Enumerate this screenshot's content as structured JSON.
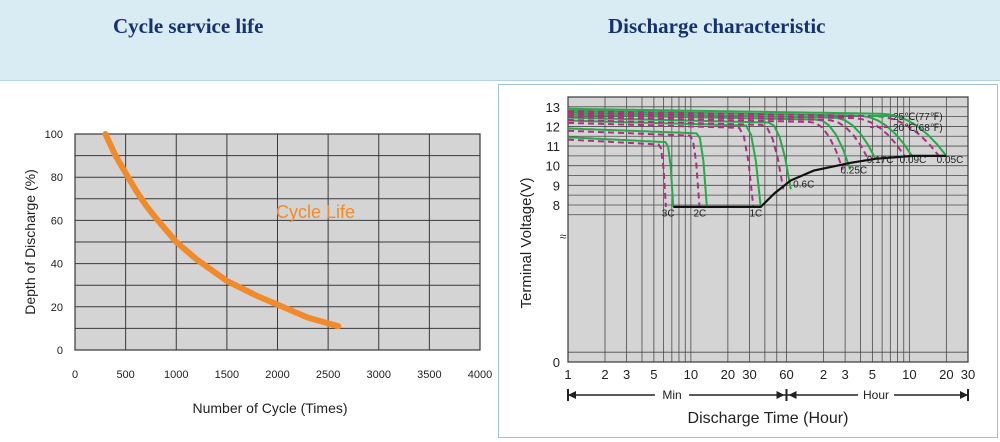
{
  "headings": {
    "left": "Cycle service life",
    "right": "Discharge characteristic"
  },
  "chart_data": [
    {
      "type": "line",
      "title": "",
      "xlabel": "Number of Cycle (Times)",
      "ylabel": "Depth of Discharge (%)",
      "xlim": [
        0,
        4000
      ],
      "ylim": [
        0,
        100
      ],
      "xticks": [
        "0",
        "500",
        "1000",
        "1500",
        "2000",
        "2500",
        "3000",
        "3500",
        "4000"
      ],
      "yticks": [
        "0",
        "20",
        "40",
        "60",
        "80",
        "100"
      ],
      "grid": true,
      "annotation": "Cycle Life",
      "series": [
        {
          "name": "",
          "color": "#f08a2a",
          "x": [
            300,
            400,
            500,
            600,
            700,
            800,
            1000,
            1200,
            1500,
            1800,
            2000,
            2300,
            2600
          ],
          "y": [
            100,
            90,
            82,
            74,
            67,
            61,
            50,
            42,
            32,
            25,
            21,
            15,
            11
          ]
        }
      ]
    },
    {
      "type": "line",
      "title": "",
      "xlabel": "Discharge Time (Hour)",
      "ylabel": "Terminal Voltage(V)",
      "ylim": [
        0,
        13.5
      ],
      "yticks": [
        "0",
        "8",
        "9",
        "10",
        "11",
        "12",
        "13"
      ],
      "xtick_labels": [
        "1",
        "2",
        "3",
        "5",
        "10",
        "20",
        "30",
        "60",
        "2",
        "3",
        "5",
        "10",
        "20",
        "30"
      ],
      "x_segments": [
        "Min",
        "Hour"
      ],
      "grid": true,
      "legend": {
        "position": "top-right",
        "entries": [
          {
            "label": "25℃(77℉)",
            "color": "#2aa74b",
            "style": "solid"
          },
          {
            "label": "20℃(68℉)",
            "color": "#a8327e",
            "style": "dashed"
          }
        ]
      },
      "cutoff_labels": [
        "3C",
        "2C",
        "1C",
        "0.6C",
        "0.25C",
        "0.17C",
        "0.09C",
        "0.05C"
      ],
      "series": [
        {
          "name": "3C",
          "start_voltage": 11.45,
          "end_time_min": 7.2
        },
        {
          "name": "2C",
          "start_voltage": 11.9,
          "end_time_min": 13.5
        },
        {
          "name": "1C",
          "start_voltage": 12.3,
          "end_time_min": 37
        },
        {
          "name": "0.6C",
          "start_voltage": 12.45,
          "end_time_min": 65
        },
        {
          "name": "0.25C",
          "start_voltage": 12.6,
          "end_time_hour": 3.3
        },
        {
          "name": "0.17C",
          "start_voltage": 12.7,
          "end_time_hour": 5.3
        },
        {
          "name": "0.09C",
          "start_voltage": 12.8,
          "end_time_hour": 10.5
        },
        {
          "name": "0.05C",
          "start_voltage": 12.9,
          "end_time_hour": 20
        }
      ]
    }
  ]
}
